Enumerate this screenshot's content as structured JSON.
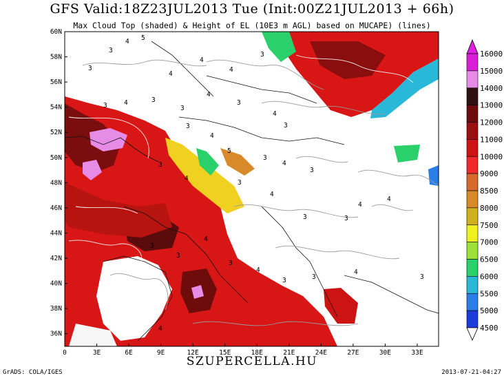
{
  "header": {
    "title": "GFS Valid:18Z23JUL2013 Tue (Init:00Z21JUL2013 + 66h)",
    "subtitle": "Max Cloud Top (shaded) & Height of EL (10E3 m AGL) based on MUCAPE) (lines)"
  },
  "map": {
    "lat_labels": [
      "60N",
      "58N",
      "56N",
      "54N",
      "52N",
      "50N",
      "48N",
      "46N",
      "44N",
      "42N",
      "40N",
      "38N",
      "36N"
    ],
    "lon_labels": [
      "0",
      "3E",
      "6E",
      "9E",
      "12E",
      "15E",
      "18E",
      "21E",
      "24E",
      "27E",
      "30E",
      "33E"
    ],
    "contour_labels": [
      "3",
      "4",
      "5",
      "3",
      "4",
      "4",
      "3",
      "4",
      "3",
      "3",
      "4",
      "3",
      "4",
      "3",
      "3",
      "4",
      "3",
      "4",
      "5",
      "3",
      "4",
      "3",
      "3",
      "4",
      "3",
      "4",
      "3",
      "3",
      "4",
      "4",
      "3",
      "3",
      "4",
      "3",
      "4",
      "3",
      "3",
      "4",
      "3",
      "4"
    ],
    "colors": {
      "land_line": "#111111",
      "contour": "#9a9a9a",
      "white_contour": "#f0f0f0"
    }
  },
  "colorbar": {
    "levels": [
      "16000",
      "15000",
      "14000",
      "13000",
      "12000",
      "11000",
      "10000",
      "9000",
      "8500",
      "8000",
      "7500",
      "7000",
      "6500",
      "6000",
      "5500",
      "5000",
      "4500"
    ],
    "colors": [
      "#d81fd8",
      "#e68ce6",
      "#301010",
      "#6e0c0c",
      "#9a0f0f",
      "#cc1414",
      "#ee2a2a",
      "#d66a2a",
      "#d88a2a",
      "#d0b020",
      "#f0f020",
      "#9ce03a",
      "#2ad06a",
      "#2ab8d8",
      "#2a7ee8",
      "#1a3cd8"
    ],
    "tip_top": "#e020e0",
    "tip_bottom": "#ffffff"
  },
  "footer": {
    "watermark": "SZUPERCELLA.HU",
    "credit": "GrADS: COLA/IGES",
    "timestamp": "2013-07-21-04:27"
  }
}
